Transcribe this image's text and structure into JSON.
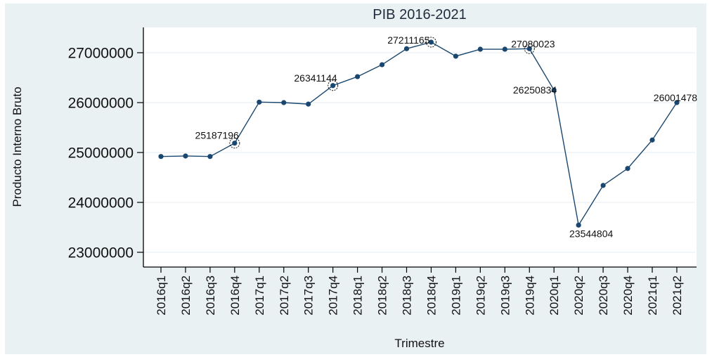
{
  "chart_data": {
    "type": "line",
    "title": "PIB 2016-2021",
    "xlabel": "Trimestre",
    "ylabel": "Producto Interno Bruto",
    "ylim": [
      22720000,
      27500000
    ],
    "yticks": [
      23000000,
      24000000,
      25000000,
      26000000,
      27000000
    ],
    "ytick_labels": [
      "23000000",
      "24000000",
      "25000000",
      "26000000",
      "27000000"
    ],
    "grid": true,
    "legend": "none",
    "categories": [
      "2016q1",
      "2016q2",
      "2016q3",
      "2016q4",
      "2017q1",
      "2017q2",
      "2017q3",
      "2017q4",
      "2018q1",
      "2018q2",
      "2018q3",
      "2018q4",
      "2019q1",
      "2019q2",
      "2019q3",
      "2019q4",
      "2020q1",
      "2020q2",
      "2020q3",
      "2020q4",
      "2021q1",
      "2021q2"
    ],
    "series": [
      {
        "name": "Producto Interno Bruto",
        "color": "#1a476f",
        "values": [
          24920000,
          24930000,
          24920000,
          25187196,
          26010000,
          26000000,
          25970000,
          26341144,
          26520000,
          26760000,
          27080000,
          27211165,
          26930000,
          27070000,
          27070000,
          27080023,
          26250834,
          23544804,
          24340000,
          24680000,
          25250000,
          26001478
        ]
      }
    ],
    "annotations": [
      {
        "category": "2016q4",
        "text": "25187196",
        "circled": true,
        "position": "upper-left"
      },
      {
        "category": "2017q4",
        "text": "26341144",
        "circled": true,
        "position": "upper-left"
      },
      {
        "category": "2018q4",
        "text": "27211165",
        "circled": true,
        "position": "left"
      },
      {
        "category": "2019q4",
        "text": "27080023",
        "circled": true,
        "position": "right"
      },
      {
        "category": "2020q1",
        "text": "26250834",
        "circled": false,
        "position": "left"
      },
      {
        "category": "2020q2",
        "text": "23544804",
        "circled": false,
        "position": "below"
      },
      {
        "category": "2021q2",
        "text": "26001478",
        "circled": false,
        "position": "above"
      }
    ]
  },
  "colors": {
    "panel_bg": "#eaf1f3",
    "plot_bg": "#ffffff",
    "gridline": "#eaf1f3",
    "series": "#1a476f",
    "axis": "#000000"
  }
}
